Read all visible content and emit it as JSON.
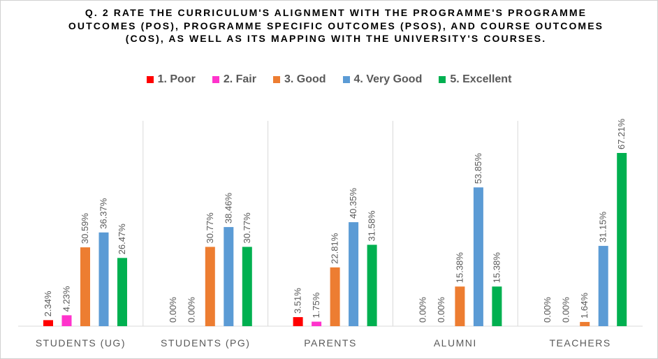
{
  "title": "Q. 2   RATE THE CURRICULUM'S ALIGNMENT WITH THE PROGRAMME'S PROGRAMME OUTCOMES (POS), PROGRAMME SPECIFIC OUTCOMES (PSOS), AND COURSE OUTCOMES (COS), AS WELL AS ITS MAPPING WITH THE UNIVERSITY'S COURSES.",
  "legend": [
    {
      "label": "1.   Poor",
      "color": "#ff0000"
    },
    {
      "label": "2.   Fair",
      "color": "#ff33cc"
    },
    {
      "label": "3.   Good",
      "color": "#ed7d31"
    },
    {
      "label": "4.   Very Good",
      "color": "#5b9bd5"
    },
    {
      "label": "5.   Excellent",
      "color": "#00b050"
    }
  ],
  "chart_data": {
    "type": "bar",
    "title": "Q. 2   RATE THE CURRICULUM'S ALIGNMENT WITH THE PROGRAMME'S PROGRAMME OUTCOMES (POS), PROGRAMME SPECIFIC OUTCOMES (PSOS), AND COURSE OUTCOMES (COS), AS WELL AS ITS MAPPING WITH THE UNIVERSITY'S COURSES.",
    "categories": [
      "STUDENTS (UG)",
      "STUDENTS (PG)",
      "PARENTS",
      "ALUMNI",
      "TEACHERS"
    ],
    "series": [
      {
        "name": "1.   Poor",
        "color": "#ff0000",
        "values": [
          2.34,
          0.0,
          3.51,
          0.0,
          0.0
        ],
        "labels": [
          "2.34%",
          "0.00%",
          "3.51%",
          "0.00%",
          "0.00%"
        ]
      },
      {
        "name": "2.   Fair",
        "color": "#ff33cc",
        "values": [
          4.23,
          0.0,
          1.75,
          0.0,
          0.0
        ],
        "labels": [
          "4.23%",
          "0.00%",
          "1.75%",
          "0.00%",
          "0.00%"
        ]
      },
      {
        "name": "3.   Good",
        "color": "#ed7d31",
        "values": [
          30.59,
          30.77,
          22.81,
          15.38,
          1.64
        ],
        "labels": [
          "30.59%",
          "30.77%",
          "22.81%",
          "15.38%",
          "1.64%"
        ]
      },
      {
        "name": "4.   Very Good",
        "color": "#5b9bd5",
        "values": [
          36.37,
          38.46,
          40.35,
          53.85,
          31.15
        ],
        "labels": [
          "36.37%",
          "38.46%",
          "40.35%",
          "53.85%",
          "31.15%"
        ]
      },
      {
        "name": "5.   Excellent",
        "color": "#00b050",
        "values": [
          26.47,
          30.77,
          31.58,
          15.38,
          67.21
        ],
        "labels": [
          "26.47%",
          "30.77%",
          "31.58%",
          "15.38%",
          "67.21%"
        ]
      }
    ],
    "ylim": [
      0,
      80
    ],
    "grid": false,
    "legend_position": "top"
  }
}
